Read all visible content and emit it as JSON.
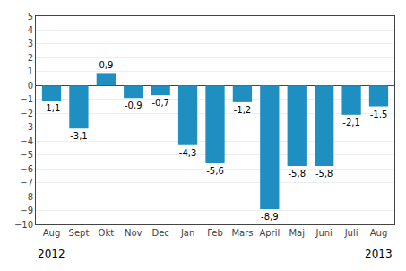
{
  "chart_data": {
    "type": "bar",
    "categories": [
      "Aug",
      "Sept",
      "Okt",
      "Nov",
      "Dec",
      "Jan",
      "Feb",
      "Mars",
      "April",
      "Maj",
      "Juni",
      "Juli",
      "Aug"
    ],
    "values": [
      -1.1,
      -3.1,
      0.9,
      -0.9,
      -0.7,
      -4.3,
      -5.6,
      -1.2,
      -8.9,
      -5.8,
      -5.8,
      -2.1,
      -1.5
    ],
    "value_labels": [
      "-1,1",
      "-3,1",
      "0,9",
      "-0,9",
      "-0,7",
      "-4,3",
      "-5,6",
      "-1,2",
      "-8,9",
      "-5,8",
      "-5,8",
      "-2,1",
      "-1,5"
    ],
    "data_labels": true,
    "color": "#1e8fc0",
    "ylim": [
      -10,
      5
    ],
    "yticks": [
      -10,
      -9,
      -8,
      -7,
      -6,
      -5,
      -4,
      -3,
      -2,
      -1,
      0,
      1,
      2,
      3,
      4,
      5
    ],
    "grid": true,
    "annotations": [
      "2012",
      "2013"
    ]
  }
}
